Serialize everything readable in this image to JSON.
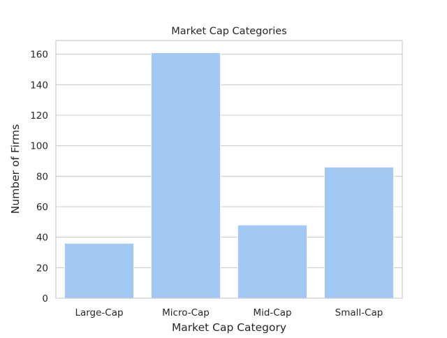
{
  "chart_data": {
    "type": "bar",
    "title": "Market Cap Categories",
    "xlabel": "Market Cap Category",
    "ylabel": "Number of Firms",
    "categories": [
      "Large-Cap",
      "Micro-Cap",
      "Mid-Cap",
      "Small-Cap"
    ],
    "values": [
      36,
      161,
      48,
      86
    ],
    "ylim": [
      0,
      169
    ],
    "yticks": [
      0,
      20,
      40,
      60,
      80,
      100,
      120,
      140,
      160
    ],
    "grid": true,
    "colors": {
      "bar": "#a1c9f4",
      "grid": "#cccccc",
      "spine": "#cccccc",
      "text": "#262626"
    }
  }
}
